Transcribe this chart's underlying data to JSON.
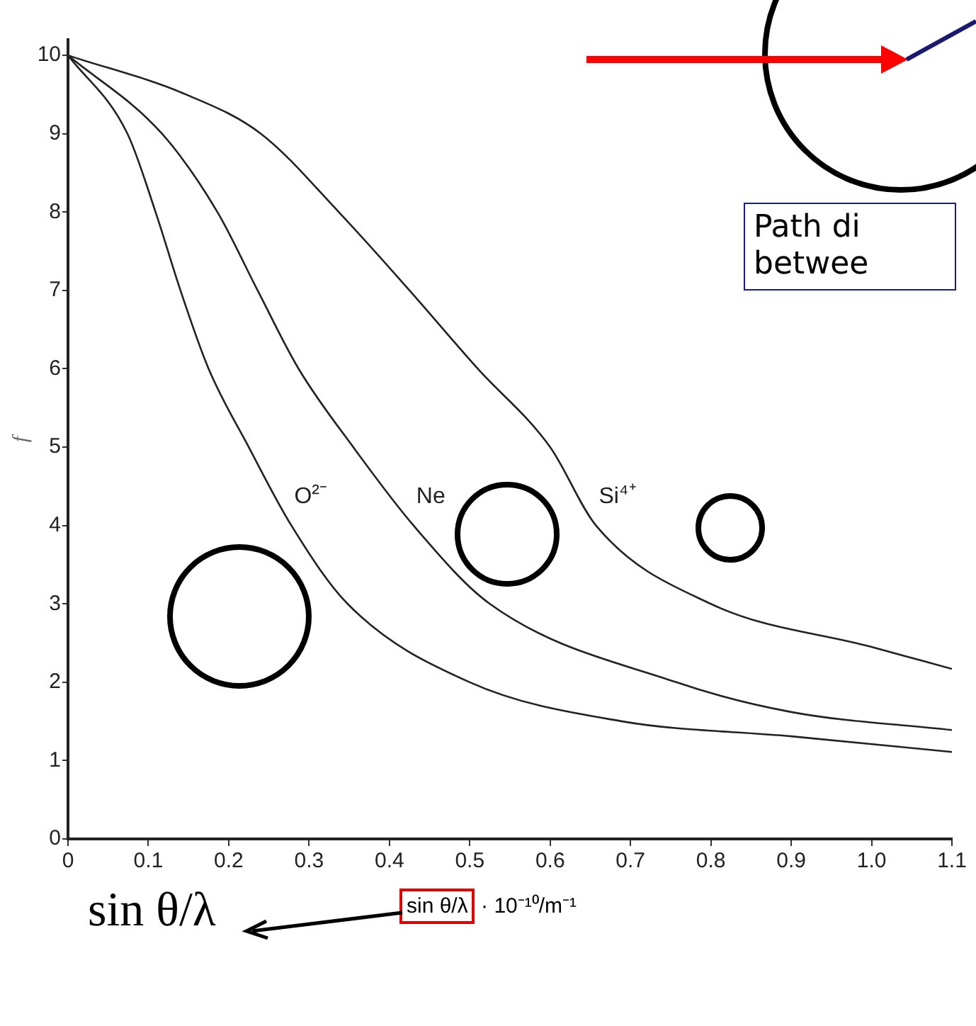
{
  "chart_data": {
    "type": "line",
    "xlabel": "sin θ/λ · 10⁻¹⁰/m⁻¹",
    "ylabel": "f",
    "series": [
      {
        "name": "O²⁻",
        "color": "#222222",
        "x": [
          0,
          0.074,
          0.109,
          0.14,
          0.175,
          0.225,
          0.278,
          0.348,
          0.5,
          0.69,
          0.9,
          1.1
        ],
        "values": [
          10,
          9,
          8,
          7,
          6,
          5,
          4,
          3,
          2,
          1.5,
          1.31,
          1.11
        ]
      },
      {
        "name": "Ne",
        "color": "#222222",
        "x": [
          0,
          0.117,
          0.186,
          0.236,
          0.287,
          0.355,
          0.43,
          0.525,
          0.757,
          0.9,
          1.1
        ],
        "values": [
          10,
          9,
          8,
          7,
          6,
          5,
          4,
          3,
          2,
          1.62,
          1.39
        ]
      },
      {
        "name": "Si⁴⁺",
        "color": "#222222",
        "x": [
          0,
          0.147,
          0.24,
          0.337,
          0.425,
          0.51,
          0.6,
          0.657,
          0.8,
          1.0,
          1.1
        ],
        "values": [
          10,
          9.5,
          9,
          8,
          7,
          6,
          5,
          4,
          3,
          2.45,
          2.17
        ]
      }
    ],
    "xlim": [
      0,
      1.1
    ],
    "ylim": [
      0,
      10.2
    ],
    "xticks": [
      0,
      0.1,
      0.2,
      0.3,
      0.4,
      0.5,
      0.6,
      0.7,
      0.8,
      0.9,
      {
        "value": 1,
        "label": "1.0"
      },
      1.1
    ],
    "yticks": [
      0,
      1,
      2,
      3,
      4,
      5,
      6,
      7,
      8,
      9,
      10
    ],
    "grid": false,
    "legend": false,
    "marker": "none",
    "line_style": "solid",
    "annotations": [
      "sin θ/λ",
      "Path di betwee"
    ]
  }
}
